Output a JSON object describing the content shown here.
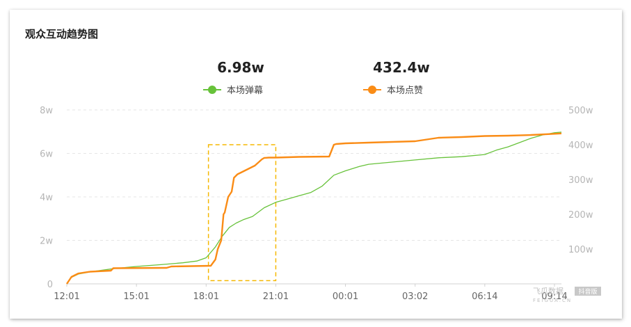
{
  "chart_data": {
    "type": "line",
    "title": "观众互动趋势图",
    "stats": [
      {
        "name": "本场弹幕",
        "value": "6.98w"
      },
      {
        "name": "本场点赞",
        "value": "432.4w"
      }
    ],
    "x_tick_labels": [
      "12:01",
      "15:01",
      "18:01",
      "21:01",
      "00:01",
      "03:02",
      "06:14",
      "09:14"
    ],
    "y_left_ticks": [
      "0",
      "2w",
      "4w",
      "6w",
      "8w"
    ],
    "y_left_range": [
      0,
      8
    ],
    "y_right_ticks": [
      "100w",
      "200w",
      "300w",
      "400w",
      "500w"
    ],
    "y_right_range": [
      0,
      500
    ],
    "grid": true,
    "legend": "top-center",
    "series": [
      {
        "name": "本场弹幕",
        "axis": "left",
        "color": "#67c23a",
        "x": [
          0,
          0.2,
          0.5,
          1,
          2,
          3,
          4,
          5,
          5.6,
          6,
          6.4,
          6.7,
          7,
          7.3,
          7.6,
          8,
          8.5,
          9,
          9.5,
          10,
          10.5,
          11,
          11.5,
          12,
          12.3,
          12.6,
          13,
          14,
          15,
          16,
          17,
          18,
          18.5,
          19,
          19.5,
          20,
          20.5,
          21,
          21.3
        ],
        "values": [
          0,
          0.3,
          0.45,
          0.55,
          0.7,
          0.8,
          0.88,
          0.97,
          1.05,
          1.2,
          1.7,
          2.2,
          2.6,
          2.8,
          2.95,
          3.1,
          3.5,
          3.75,
          3.9,
          4.05,
          4.2,
          4.5,
          5.0,
          5.2,
          5.3,
          5.4,
          5.5,
          5.6,
          5.7,
          5.8,
          5.85,
          5.95,
          6.15,
          6.3,
          6.5,
          6.7,
          6.85,
          6.95,
          6.98
        ]
      },
      {
        "name": "本场点赞",
        "axis": "right",
        "color": "#fa8c16",
        "x": [
          0,
          0.2,
          0.5,
          1,
          1.9,
          2,
          4.3,
          4.5,
          6.2,
          6.4,
          6.5,
          6.65,
          6.75,
          6.8,
          6.95,
          7.1,
          7.2,
          7.35,
          7.5,
          7.8,
          8.1,
          8.4,
          8.5,
          8.7,
          9,
          10,
          11.3,
          11.5,
          11.6,
          12,
          13,
          14,
          15,
          16,
          17,
          18,
          19,
          20,
          21.3
        ],
        "values": [
          0,
          20,
          30,
          35,
          38,
          45,
          46,
          50,
          52,
          70,
          100,
          125,
          200,
          205,
          250,
          265,
          305,
          315,
          320,
          330,
          340,
          358,
          362,
          363,
          363,
          365,
          366,
          400,
          402,
          404,
          406,
          408,
          410,
          420,
          422,
          425,
          426,
          428,
          432.4
        ]
      }
    ],
    "annotations": [
      {
        "type": "dashed-box",
        "color": "#f5b800",
        "x_range": [
          6.1,
          9.0
        ],
        "y_left_range": [
          0.15,
          6.4
        ]
      }
    ],
    "watermark": {
      "text": "飞瓜数据",
      "sub": "FEIGUA.CN",
      "badge": "抖音版"
    }
  }
}
